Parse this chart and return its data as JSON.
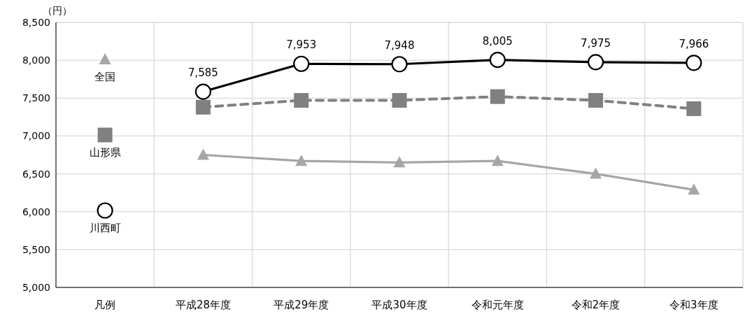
{
  "chart_data": {
    "type": "line",
    "ylabel": "（円）",
    "categories": [
      "凡例",
      "平成28年度",
      "平成29年度",
      "平成30年度",
      "令和元年度",
      "令和2年度",
      "令和3年度"
    ],
    "series": [
      {
        "name": "全国",
        "color": "#a6a6a6",
        "marker": "triangle",
        "line_style": "solid",
        "values": [
          null,
          6750,
          6670,
          6650,
          6670,
          6500,
          6290
        ]
      },
      {
        "name": "山形県",
        "color": "#808080",
        "marker": "square",
        "line_style": "dashed",
        "values": [
          null,
          7380,
          7470,
          7470,
          7520,
          7470,
          7360
        ]
      },
      {
        "name": "川西町",
        "color": "#000000",
        "marker": "circle",
        "line_style": "solid",
        "values": [
          null,
          7585,
          7953,
          7948,
          8005,
          7975,
          7966
        ],
        "value_labels": [
          null,
          "7,585",
          "7,953",
          "7,948",
          "8,005",
          "7,975",
          "7,966"
        ]
      }
    ],
    "ylim": [
      5000,
      8500
    ],
    "yticks": [
      {
        "value": 5000,
        "label": "5,000"
      },
      {
        "value": 5500,
        "label": "5,500"
      },
      {
        "value": 6000,
        "label": "6,000"
      },
      {
        "value": 6500,
        "label": "6,500"
      },
      {
        "value": 7000,
        "label": "7,000"
      },
      {
        "value": 7500,
        "label": "7,500"
      },
      {
        "value": 8000,
        "label": "8,000"
      },
      {
        "value": 8500,
        "label": "8,500"
      }
    ],
    "grid": true,
    "legend": "left"
  }
}
